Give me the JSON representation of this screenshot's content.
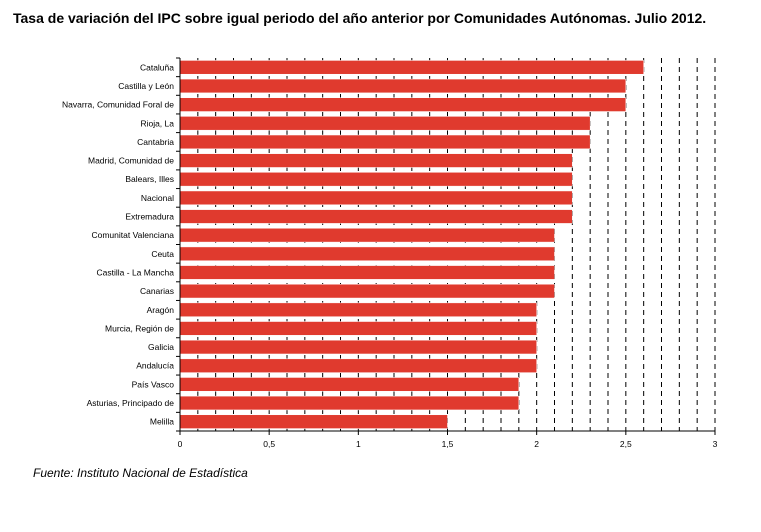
{
  "title": "Tasa de variación del IPC sobre igual periodo del año anterior por Comunidades Autónomas. Julio 2012.",
  "source": "Fuente: Instituto Nacional de Estadística",
  "colors": {
    "bar": "#e03a2e",
    "bar_stroke": "#ffffff",
    "grid": "#000000",
    "axis": "#000000"
  },
  "chart_data": {
    "type": "bar",
    "orientation": "horizontal",
    "categories": [
      "Cataluña",
      "Castilla y León",
      "Navarra, Comunidad Foral de",
      "Rioja, La",
      "Cantabria",
      "Madrid, Comunidad de",
      "Balears, Illes",
      "Nacional",
      "Extremadura",
      "Comunitat Valenciana",
      "Ceuta",
      "Castilla - La Mancha",
      "Canarias",
      "Aragón",
      "Murcia, Región de",
      "Galicia",
      "Andalucía",
      "País Vasco",
      "Asturias, Principado de",
      "Melilla"
    ],
    "values": [
      2.6,
      2.5,
      2.5,
      2.3,
      2.3,
      2.2,
      2.2,
      2.2,
      2.2,
      2.1,
      2.1,
      2.1,
      2.1,
      2.0,
      2.0,
      2.0,
      2.0,
      1.9,
      1.9,
      1.5
    ],
    "xlim": [
      0,
      3
    ],
    "xticks": [
      0,
      0.5,
      1,
      1.5,
      2,
      2.5,
      3
    ],
    "xtick_labels": [
      "0",
      "0,5",
      "1",
      "1,5",
      "2",
      "2,5",
      "3"
    ],
    "gridlines": [
      0.1,
      0.2,
      0.3,
      0.4,
      0.5,
      0.6,
      0.7,
      0.8,
      0.9,
      1.0,
      1.1,
      1.2,
      1.3,
      1.4,
      1.5,
      1.6,
      1.7,
      1.8,
      1.9,
      2.0,
      2.1,
      2.2,
      2.3,
      2.4,
      2.5,
      2.6,
      2.7,
      2.8,
      2.9,
      3.0
    ],
    "grid": "vertical dashed",
    "legend": "none",
    "xlabel": "",
    "ylabel": ""
  }
}
